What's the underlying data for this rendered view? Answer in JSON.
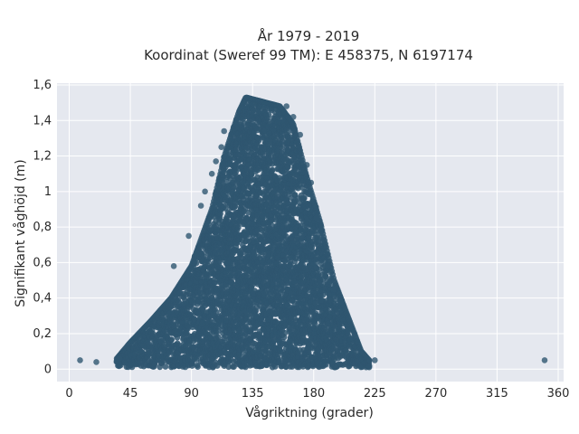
{
  "chart_data": {
    "type": "scatter",
    "title_lines": [
      "År 1979 - 2019",
      "Koordinat (Sweref 99 TM): E 458375, N 6197174"
    ],
    "xlabel": "Vågriktning (grader)",
    "ylabel": "Signifikant våghöjd (m)",
    "xlim": [
      -9,
      364
    ],
    "ylim": [
      -0.07,
      1.61
    ],
    "x_ticks": [
      0,
      45,
      90,
      135,
      180,
      225,
      270,
      315,
      360
    ],
    "x_tick_labels": [
      "0",
      "45",
      "90",
      "135",
      "180",
      "225",
      "270",
      "315",
      "360"
    ],
    "y_ticks": [
      0,
      0.2,
      0.4,
      0.6,
      0.8,
      1,
      1.2,
      1.4,
      1.6
    ],
    "y_tick_labels": [
      "0",
      "0,2",
      "0,4",
      "0,6",
      "0,8",
      "1",
      "1,2",
      "1,4",
      "1,6"
    ],
    "grid": true,
    "colors": {
      "marker": "#2f5670",
      "plot_bg": "#e5e8ef",
      "grid": "#ffffff"
    },
    "envelope": {
      "description_x": [
        34,
        45,
        60,
        75,
        90,
        105,
        115,
        125,
        130,
        135,
        145,
        155,
        165,
        175,
        185,
        195,
        205,
        215,
        222
      ],
      "upper_h": [
        0.05,
        0.15,
        0.27,
        0.4,
        0.58,
        0.9,
        1.22,
        1.45,
        1.53,
        1.52,
        1.5,
        1.48,
        1.38,
        1.08,
        0.82,
        0.5,
        0.3,
        0.1,
        0.04
      ]
    },
    "outliers": [
      {
        "x": 8,
        "y": 0.05
      },
      {
        "x": 20,
        "y": 0.04
      },
      {
        "x": 35,
        "y": 0.05
      },
      {
        "x": 37,
        "y": 0.06
      },
      {
        "x": 225,
        "y": 0.05
      },
      {
        "x": 350,
        "y": 0.05
      },
      {
        "x": 77,
        "y": 0.58
      },
      {
        "x": 88,
        "y": 0.75
      },
      {
        "x": 97,
        "y": 0.92
      },
      {
        "x": 100,
        "y": 1.0
      },
      {
        "x": 105,
        "y": 1.1
      },
      {
        "x": 108,
        "y": 1.17
      },
      {
        "x": 112,
        "y": 1.25
      },
      {
        "x": 114,
        "y": 1.34
      },
      {
        "x": 160,
        "y": 1.48
      },
      {
        "x": 165,
        "y": 1.42
      },
      {
        "x": 170,
        "y": 1.32
      },
      {
        "x": 175,
        "y": 1.15
      },
      {
        "x": 178,
        "y": 1.05
      },
      {
        "x": 182,
        "y": 0.85
      },
      {
        "x": 186,
        "y": 0.72
      },
      {
        "x": 190,
        "y": 0.58
      },
      {
        "x": 195,
        "y": 0.45
      },
      {
        "x": 200,
        "y": 0.38
      },
      {
        "x": 210,
        "y": 0.2
      }
    ]
  }
}
